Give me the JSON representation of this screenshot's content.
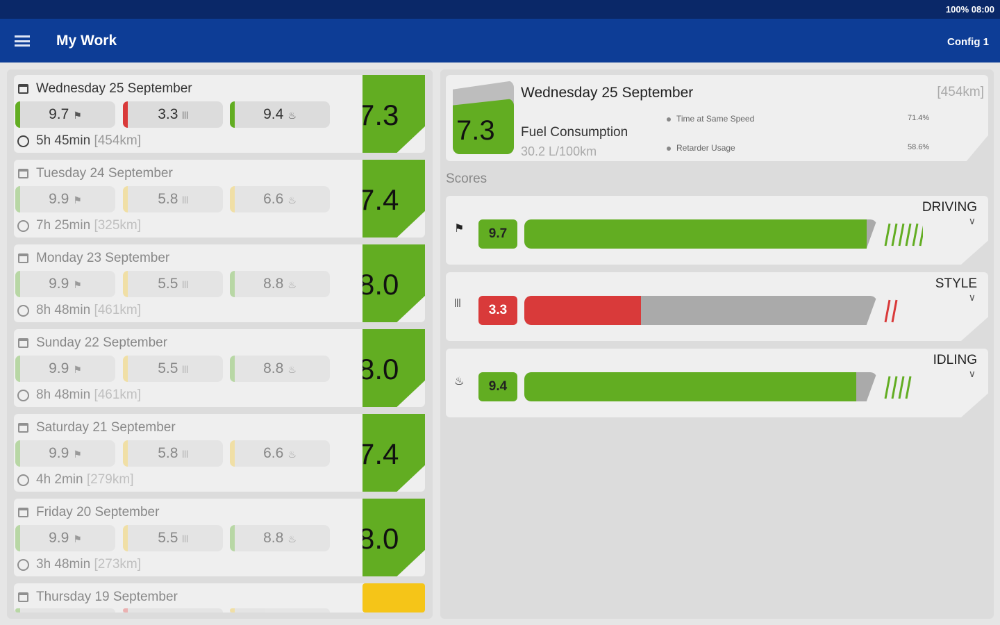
{
  "status_bar": {
    "text": "100% 08:00"
  },
  "app_bar": {
    "title": "My Work",
    "config": "Config 1",
    "menu_icon": "hamburger-icon"
  },
  "colors": {
    "green": "#62ad22",
    "red": "#d93a3a",
    "yellow": "#f5c518",
    "gray": "#aaaaaa",
    "appbar": "#0d3d96"
  },
  "days": [
    {
      "date": "Wednesday 25 September",
      "driving": "9.7",
      "style": "3.3",
      "idling": "9.4",
      "driving_color": "#62ad22",
      "style_color": "#d93a3a",
      "idling_color": "#62ad22",
      "duration": "5h 45min",
      "distance": "[454km]",
      "score": "7.3",
      "score_color": "green"
    },
    {
      "date": "Tuesday 24 September",
      "driving": "9.9",
      "style": "5.8",
      "idling": "6.6",
      "driving_color": "#8cc46a",
      "style_color": "#f2d36b",
      "idling_color": "#f2d36b",
      "duration": "7h 25min",
      "distance": "[325km]",
      "score": "7.4",
      "score_color": "green"
    },
    {
      "date": "Monday 23 September",
      "driving": "9.9",
      "style": "5.5",
      "idling": "8.8",
      "driving_color": "#8cc46a",
      "style_color": "#f2d36b",
      "idling_color": "#8cc46a",
      "duration": "8h 48min",
      "distance": "[461km]",
      "score": "8.0",
      "score_color": "green"
    },
    {
      "date": "Sunday 22 September",
      "driving": "9.9",
      "style": "5.5",
      "idling": "8.8",
      "driving_color": "#8cc46a",
      "style_color": "#f2d36b",
      "idling_color": "#8cc46a",
      "duration": "8h 48min",
      "distance": "[461km]",
      "score": "8.0",
      "score_color": "green"
    },
    {
      "date": "Saturday 21 September",
      "driving": "9.9",
      "style": "5.8",
      "idling": "6.6",
      "driving_color": "#8cc46a",
      "style_color": "#f2d36b",
      "idling_color": "#f2d36b",
      "duration": "4h 2min",
      "distance": "[279km]",
      "score": "7.4",
      "score_color": "green"
    },
    {
      "date": "Friday 20 September",
      "driving": "9.9",
      "style": "5.5",
      "idling": "8.8",
      "driving_color": "#8cc46a",
      "style_color": "#f2d36b",
      "idling_color": "#8cc46a",
      "duration": "3h 48min",
      "distance": "[273km]",
      "score": "8.0",
      "score_color": "green"
    },
    {
      "date": "Thursday 19 September",
      "driving_color": "#8cc46a",
      "style_color": "#e88080",
      "idling_color": "#f2d36b",
      "score_color": "yellow"
    }
  ],
  "summary": {
    "score": "7.3",
    "date": "Wednesday 25 September",
    "distance": "[454km]",
    "fuel_label": "Fuel Consumption",
    "fuel_value": "30.2 L/100km",
    "stats": [
      {
        "label": "Time at Same Speed",
        "value": "71.4%"
      },
      {
        "label": "Retarder Usage",
        "value": "58.6%"
      }
    ]
  },
  "scores_label": "Scores",
  "scores": [
    {
      "name": "DRIVING",
      "value": "9.7",
      "fraction": 0.97,
      "color": "#62ad22",
      "icon": "flag-icon"
    },
    {
      "name": "STYLE",
      "value": "3.3",
      "fraction": 0.33,
      "color": "#d93a3a",
      "icon": "gearbox-icon"
    },
    {
      "name": "IDLING",
      "value": "9.4",
      "fraction": 0.94,
      "color": "#62ad22",
      "icon": "engine-icon"
    }
  ]
}
